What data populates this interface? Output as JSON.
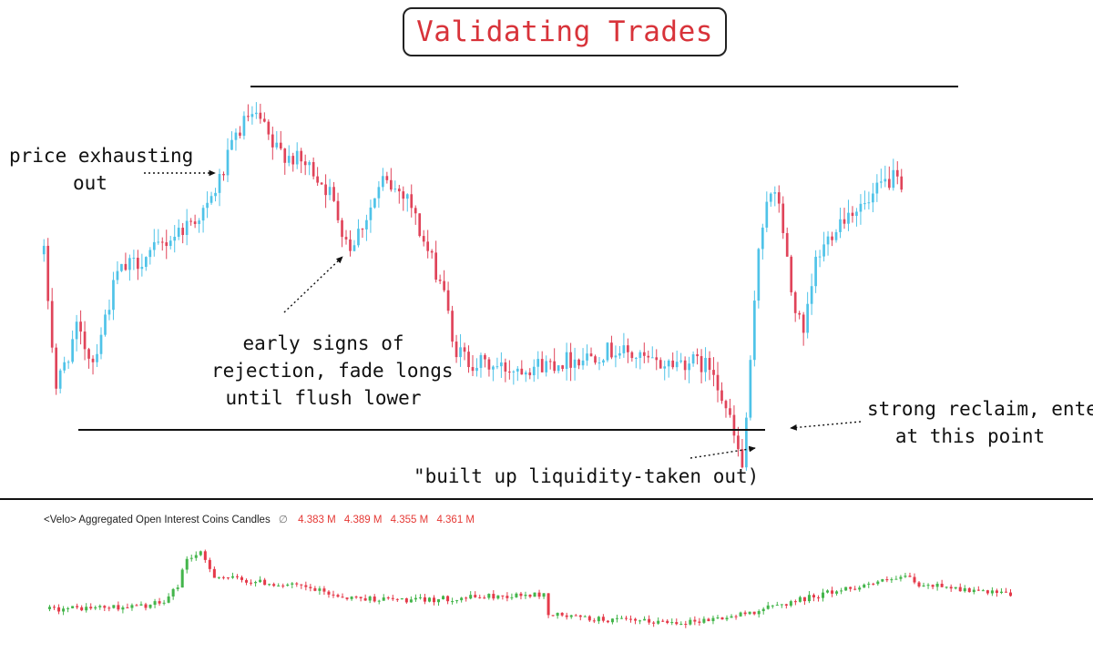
{
  "title": "Validating Trades",
  "annotations": [
    {
      "id": "exhaust",
      "lines": [
        "price exhausting",
        "out"
      ]
    },
    {
      "id": "reject",
      "lines": [
        "early signs of",
        "rejection, fade longs",
        "until flush lower"
      ]
    },
    {
      "id": "liquidity",
      "lines": [
        "\"built up liquidity-taken out)"
      ]
    },
    {
      "id": "reclaim",
      "lines": [
        "strong reclaim, enter",
        "at this point"
      ]
    }
  ],
  "colors": {
    "up": "#4fc3e8",
    "down": "#e0445a",
    "oi_up": "#43b54b",
    "oi_down": "#e53a4a",
    "title": "#d8333a"
  },
  "oi_legend": {
    "label": "<Velo> Aggregated Open Interest Coins Candles",
    "symbol": "∅",
    "values": [
      "4.383 M",
      "4.389 M",
      "4.355 M",
      "4.361 M"
    ]
  },
  "chart_data": [
    {
      "type": "candlestick",
      "title": "",
      "levels": [
        "range high",
        "range low"
      ],
      "trend": [
        {
          "x": 0,
          "y": 60
        },
        {
          "x": 3,
          "y": 25
        },
        {
          "x": 8,
          "y": 40
        },
        {
          "x": 12,
          "y": 32
        },
        {
          "x": 18,
          "y": 55
        },
        {
          "x": 26,
          "y": 60
        },
        {
          "x": 34,
          "y": 67
        },
        {
          "x": 40,
          "y": 72
        },
        {
          "x": 44,
          "y": 82
        },
        {
          "x": 47,
          "y": 91
        },
        {
          "x": 50,
          "y": 96
        },
        {
          "x": 53,
          "y": 95
        },
        {
          "x": 56,
          "y": 88
        },
        {
          "x": 60,
          "y": 86
        },
        {
          "x": 63,
          "y": 84
        },
        {
          "x": 66,
          "y": 82
        },
        {
          "x": 70,
          "y": 76
        },
        {
          "x": 73,
          "y": 67
        },
        {
          "x": 75,
          "y": 62
        },
        {
          "x": 79,
          "y": 70
        },
        {
          "x": 83,
          "y": 79
        },
        {
          "x": 86,
          "y": 77
        },
        {
          "x": 89,
          "y": 76
        },
        {
          "x": 92,
          "y": 66
        },
        {
          "x": 95,
          "y": 58
        },
        {
          "x": 98,
          "y": 51
        },
        {
          "x": 100,
          "y": 36
        },
        {
          "x": 104,
          "y": 32
        },
        {
          "x": 112,
          "y": 30
        },
        {
          "x": 122,
          "y": 31
        },
        {
          "x": 132,
          "y": 33
        },
        {
          "x": 140,
          "y": 35
        },
        {
          "x": 150,
          "y": 31
        },
        {
          "x": 158,
          "y": 32
        },
        {
          "x": 164,
          "y": 30
        },
        {
          "x": 168,
          "y": 16
        },
        {
          "x": 171,
          "y": 4
        },
        {
          "x": 173,
          "y": 30
        },
        {
          "x": 175,
          "y": 62
        },
        {
          "x": 177,
          "y": 75
        },
        {
          "x": 180,
          "y": 74
        },
        {
          "x": 183,
          "y": 50
        },
        {
          "x": 186,
          "y": 38
        },
        {
          "x": 189,
          "y": 58
        },
        {
          "x": 194,
          "y": 68
        },
        {
          "x": 198,
          "y": 72
        },
        {
          "x": 202,
          "y": 73
        },
        {
          "x": 205,
          "y": 78
        },
        {
          "x": 208,
          "y": 80
        },
        {
          "x": 210,
          "y": 76
        }
      ]
    },
    {
      "type": "candlestick",
      "title": "<Velo> Aggregated Open Interest Coins Candles",
      "trend": [
        {
          "x": 0,
          "y": 35
        },
        {
          "x": 20,
          "y": 38
        },
        {
          "x": 25,
          "y": 42
        },
        {
          "x": 28,
          "y": 60
        },
        {
          "x": 30,
          "y": 88
        },
        {
          "x": 33,
          "y": 92
        },
        {
          "x": 36,
          "y": 70
        },
        {
          "x": 42,
          "y": 65
        },
        {
          "x": 55,
          "y": 58
        },
        {
          "x": 65,
          "y": 47
        },
        {
          "x": 80,
          "y": 44
        },
        {
          "x": 95,
          "y": 48
        },
        {
          "x": 108,
          "y": 50
        },
        {
          "x": 109,
          "y": 30
        },
        {
          "x": 118,
          "y": 25
        },
        {
          "x": 130,
          "y": 22
        },
        {
          "x": 140,
          "y": 22
        },
        {
          "x": 150,
          "y": 28
        },
        {
          "x": 160,
          "y": 40
        },
        {
          "x": 170,
          "y": 52
        },
        {
          "x": 180,
          "y": 62
        },
        {
          "x": 188,
          "y": 68
        },
        {
          "x": 190,
          "y": 58
        },
        {
          "x": 195,
          "y": 60
        },
        {
          "x": 200,
          "y": 55
        },
        {
          "x": 205,
          "y": 52
        },
        {
          "x": 210,
          "y": 50
        }
      ]
    }
  ]
}
